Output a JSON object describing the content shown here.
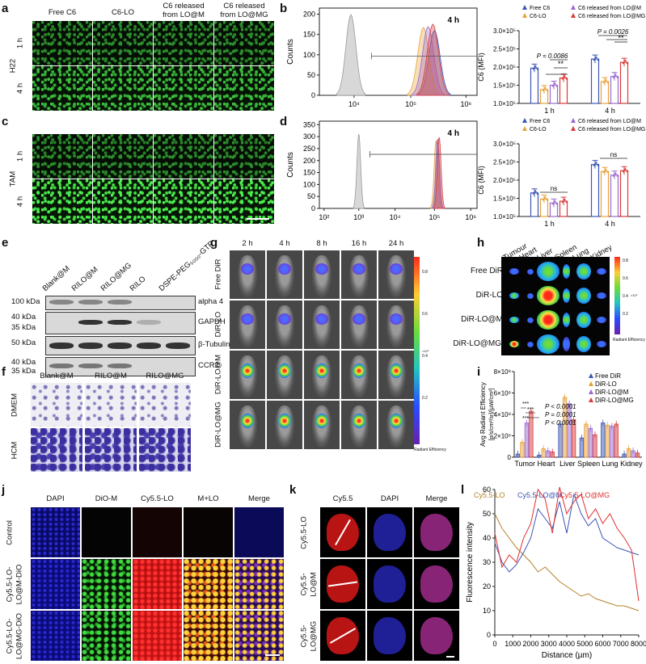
{
  "labels": {
    "a": "a",
    "b": "b",
    "c": "c",
    "d": "d",
    "e": "e",
    "f": "f",
    "g": "g",
    "h": "h",
    "i": "i",
    "j": "j",
    "k": "k",
    "l": "l"
  },
  "panel_a": {
    "cols": [
      "Free C6",
      "C6-LO",
      "C6 released from LO@M",
      "C6 released from LO@MG"
    ],
    "cols_lines": [
      [
        "Free C6"
      ],
      [
        "C6-LO"
      ],
      [
        "C6 released",
        "from LO@M"
      ],
      [
        "C6 released",
        "from LO@MG"
      ]
    ],
    "group_top": "H22",
    "group_bottom": "TAM",
    "times": [
      "1 h",
      "4 h"
    ]
  },
  "flow_b": {
    "ylabel": "Counts",
    "time": "4 h",
    "yticks": [
      "0",
      "50",
      "100",
      "150",
      "200"
    ],
    "xticks": [
      "10⁴",
      "10⁵",
      "10⁶"
    ]
  },
  "flow_d": {
    "ylabel": "Counts",
    "time": "4 h",
    "yticks": [
      "0",
      "50",
      "100",
      "150",
      "200",
      "250",
      "300",
      "350"
    ],
    "xticks": [
      "10²",
      "10³",
      "10⁴",
      "10⁵",
      "10⁶"
    ]
  },
  "chart_data": [
    {
      "type": "bar",
      "panel": "b",
      "ylabel": "C6 (MFI)",
      "categories": [
        "1 h",
        "4 h"
      ],
      "yticks": [
        "1.0×10⁵",
        "1.5×10⁵",
        "2.0×10⁵",
        "2.5×10⁵",
        "3.0×10⁵"
      ],
      "ylim": [
        100000,
        300000
      ],
      "series": [
        {
          "name": "Free C6",
          "values": [
            197000,
            222000
          ]
        },
        {
          "name": "C6-LO",
          "values": [
            138000,
            160000
          ]
        },
        {
          "name": "C6 released from LO@M",
          "values": [
            150000,
            174000
          ]
        },
        {
          "name": "C6 released from LO@MG",
          "values": [
            170000,
            213000
          ]
        }
      ],
      "annotations": [
        "P = 0.0086",
        "**",
        "P = 0.0026",
        "**"
      ]
    },
    {
      "type": "bar",
      "panel": "d",
      "ylabel": "C6 (MFI)",
      "categories": [
        "1 h",
        "4 h"
      ],
      "yticks": [
        "1.0×10⁵",
        "1.5×10⁵",
        "2.0×10⁵",
        "2.5×10⁵",
        "3.0×10⁵"
      ],
      "ylim": [
        100000,
        300000
      ],
      "series": [
        {
          "name": "Free C6",
          "values": [
            165000,
            243000
          ]
        },
        {
          "name": "C6-LO",
          "values": [
            148000,
            224000
          ]
        },
        {
          "name": "C6 released from LO@M",
          "values": [
            137000,
            214000
          ]
        },
        {
          "name": "C6 released from LO@MG",
          "values": [
            142000,
            226000
          ]
        }
      ],
      "annotations": [
        "ns",
        "ns"
      ]
    },
    {
      "type": "bar",
      "panel": "i",
      "ylabel": "Avg Radiant Efficiency [p/s/cm²/sr]/[µW/cm²]",
      "categories": [
        "Tumor",
        "Heart",
        "Liver",
        "Spleen",
        "Lung",
        "Kidney"
      ],
      "yticks": [
        "0",
        "2×10⁸",
        "4×10⁸",
        "6×10⁸",
        "8×10⁸"
      ],
      "ylim": [
        0,
        800000000
      ],
      "series": [
        {
          "name": "Free DiR",
          "values": [
            30000000,
            20000000,
            310000000,
            180000000,
            320000000,
            30000000
          ]
        },
        {
          "name": "DiR-LO",
          "values": [
            140000000,
            80000000,
            560000000,
            310000000,
            300000000,
            80000000
          ]
        },
        {
          "name": "DiR-LO@M",
          "values": [
            320000000,
            60000000,
            500000000,
            270000000,
            290000000,
            60000000
          ]
        },
        {
          "name": "DiR-LO@MG",
          "values": [
            430000000,
            50000000,
            350000000,
            210000000,
            310000000,
            40000000
          ]
        }
      ],
      "annotations": [
        "***",
        "***",
        "***",
        "P < 0.0001",
        "P = 0.0001",
        "P < 0.0001"
      ]
    },
    {
      "type": "line",
      "panel": "l",
      "ylabel": "Fluorescence intensity",
      "xlabel": "Distance (µm)",
      "xticks": [
        "0",
        "1000",
        "2000",
        "3000",
        "4000",
        "5000",
        "6000",
        "7000",
        "8000"
      ],
      "yticks": [
        "0",
        "10",
        "20",
        "30",
        "40",
        "50",
        "60"
      ],
      "xlim": [
        0,
        8000
      ],
      "ylim": [
        0,
        60
      ],
      "x": [
        0,
        400,
        800,
        1200,
        1600,
        2000,
        2400,
        2800,
        3200,
        3600,
        4000,
        4400,
        4800,
        5200,
        5600,
        6000,
        6400,
        6800,
        7200,
        7600,
        8000
      ],
      "series": [
        {
          "name": "Cy5.5-LO",
          "values": [
            50,
            44,
            40,
            36,
            33,
            30,
            26,
            28,
            25,
            22,
            20,
            18,
            16,
            17,
            15,
            14,
            13,
            12,
            12,
            11,
            10
          ]
        },
        {
          "name": "Cy5.5-LO@M",
          "values": [
            38,
            30,
            26,
            29,
            34,
            40,
            52,
            48,
            44,
            55,
            42,
            58,
            50,
            45,
            48,
            40,
            38,
            36,
            35,
            34,
            33
          ]
        },
        {
          "name": "Cy5.5-LO@MG",
          "values": [
            42,
            28,
            33,
            30,
            40,
            46,
            60,
            56,
            42,
            61,
            50,
            55,
            58,
            48,
            52,
            46,
            50,
            44,
            40,
            35,
            14
          ]
        }
      ]
    }
  ],
  "panel_e": {
    "lanes": [
      "Blank@M",
      "RILO@M",
      "RILO@MG",
      "RILO",
      "DSPE-PEG₅₀₀₀-GTP"
    ],
    "blots": [
      {
        "name": "alpha 4",
        "markers": [
          "100 kDa"
        ]
      },
      {
        "name": "GAPDH",
        "markers": [
          "40 kDa",
          "35 kDa"
        ]
      },
      {
        "name": "β-Tubulin",
        "markers": [
          "50 kDa"
        ]
      },
      {
        "name": "CCR2",
        "markers": [
          "40 kDa",
          "35 kDa"
        ]
      }
    ]
  },
  "panel_f": {
    "cols": [
      "Blank@M",
      "RILO@M",
      "RILO@MG"
    ],
    "rows": [
      "DMEM",
      "HCM"
    ]
  },
  "panel_g": {
    "times": [
      "2 h",
      "4 h",
      "8 h",
      "16 h",
      "24 h"
    ],
    "rows": [
      "Free DiR",
      "DiR-LO",
      "DiR-LO@M",
      "DiR-LO@MG"
    ],
    "colorbar_ticks": [
      "0.8",
      "0.6",
      "0.4",
      "0.2"
    ],
    "colorbar_exp": "×10⁹",
    "colorbar_title": "Radiant Efficiency"
  },
  "panel_h": {
    "organs": [
      "Tumour",
      "Heart",
      "Liver",
      "Spleen",
      "Lung",
      "Kidney"
    ],
    "rows": [
      "Free DiR",
      "DiR-LO",
      "DiR-LO@M",
      "DiR-LO@MG"
    ],
    "colorbar_ticks": [
      "0.8",
      "0.6",
      "0.4",
      "0.2"
    ],
    "colorbar_exp": "×10⁹",
    "colorbar_title": "Radiant Efficiency"
  },
  "panel_j": {
    "cols": [
      "DAPI",
      "DiO-M",
      "Cy5.5-LO",
      "M+LO",
      "Merge"
    ],
    "rows": [
      "Control",
      "Cy5.5-LO@M-DiO",
      "Cy5.5-LO@MG-DiO"
    ]
  },
  "panel_k": {
    "cols": [
      "Cy5.5",
      "DAPI",
      "Merge"
    ],
    "rows": [
      "Cy5.5-LO",
      "Cy5.5-LO@M",
      "Cy5.5-LO@MG"
    ]
  },
  "colors": {
    "free": "#3c55b4",
    "lo": "#e8a23a",
    "lom": "#9a6ad0",
    "lomg": "#d93a3a",
    "lo_line": "#b5812a",
    "lom_line": "#3c55b4",
    "lomg_line": "#e03030"
  }
}
